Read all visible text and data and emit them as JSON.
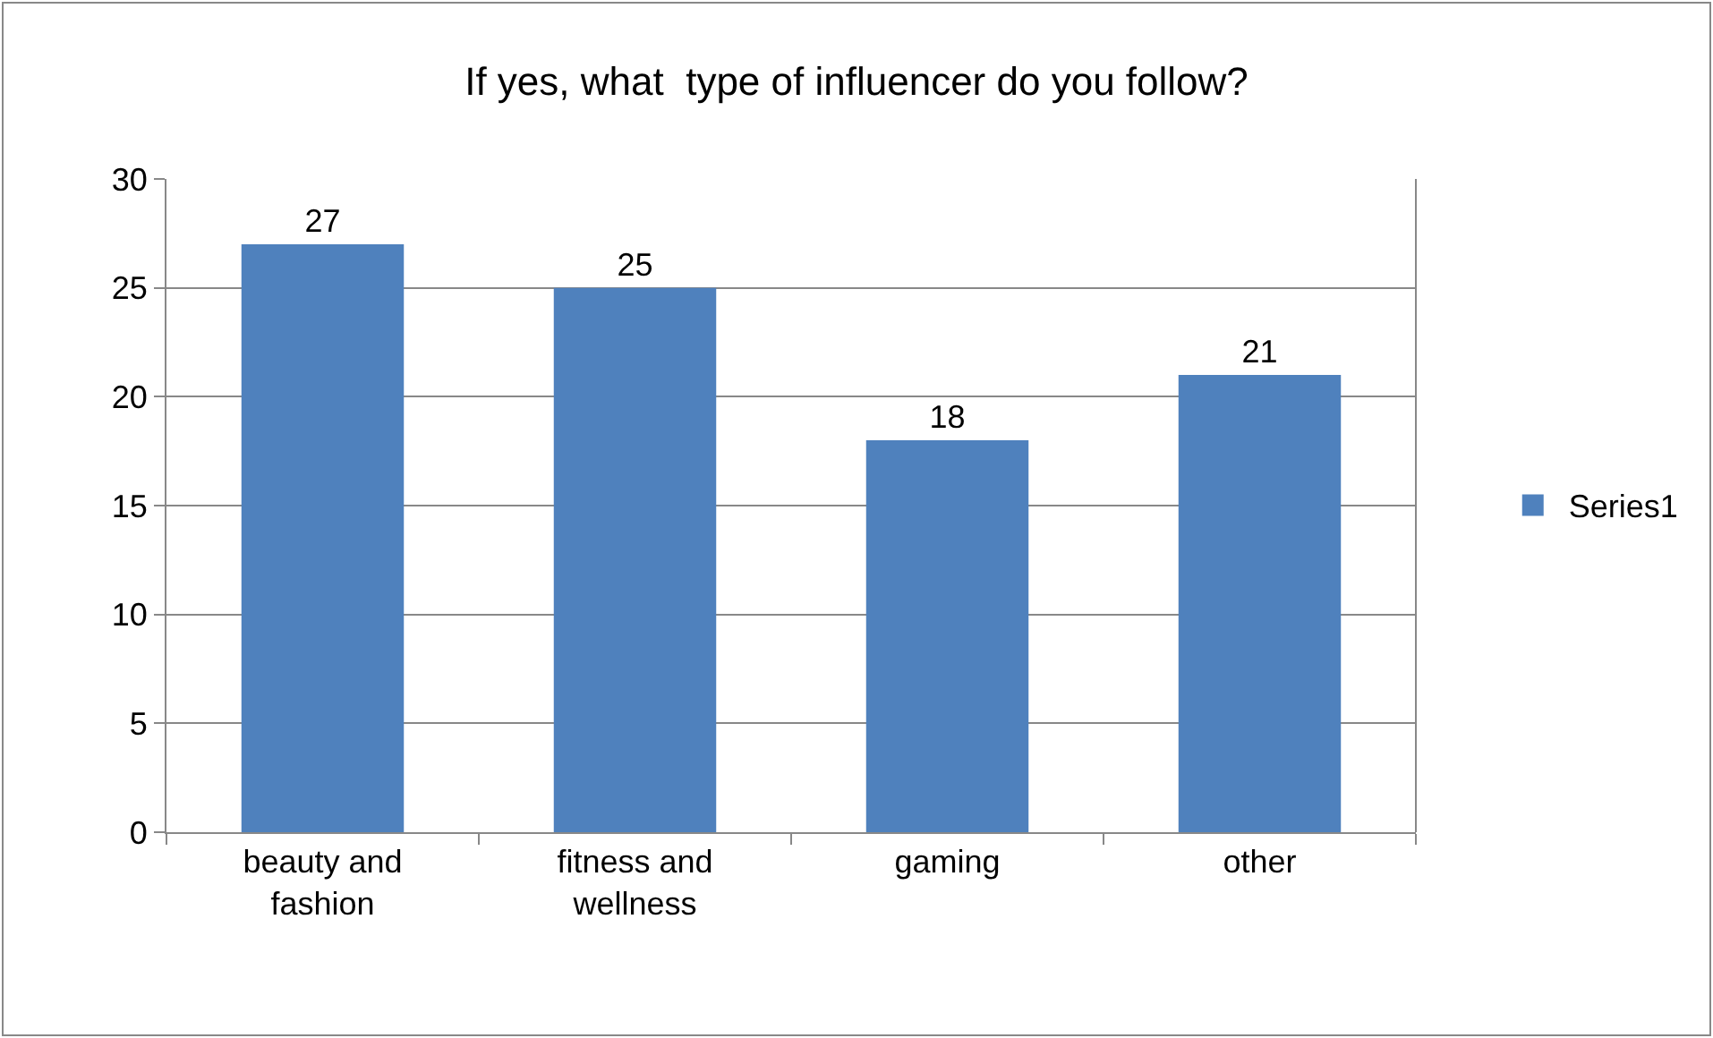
{
  "chart_data": {
    "type": "bar",
    "title": "If yes, what  type of influencer do you follow?",
    "categories": [
      "beauty and fashion",
      "fitness and wellness",
      "gaming",
      "other"
    ],
    "series": [
      {
        "name": "Series1",
        "color": "#4f81bd",
        "values": [
          27,
          25,
          18,
          21
        ]
      }
    ],
    "ylim": [
      0,
      30
    ],
    "yticks": [
      0,
      5,
      10,
      15,
      20,
      25,
      30
    ],
    "grid": "y",
    "legend": "right",
    "data_labels": true
  }
}
